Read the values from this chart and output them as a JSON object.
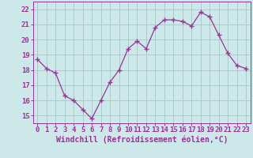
{
  "x": [
    0,
    1,
    2,
    3,
    4,
    5,
    6,
    7,
    8,
    9,
    10,
    11,
    12,
    13,
    14,
    15,
    16,
    17,
    18,
    19,
    20,
    21,
    22,
    23
  ],
  "y": [
    18.7,
    18.1,
    17.8,
    16.3,
    16.0,
    15.4,
    14.8,
    16.0,
    17.2,
    18.0,
    19.4,
    19.9,
    19.4,
    20.8,
    21.3,
    21.3,
    21.2,
    20.9,
    21.8,
    21.5,
    20.3,
    19.1,
    18.3,
    18.1
  ],
  "line_color": "#993399",
  "marker": "+",
  "bg_color": "#cce8e8",
  "grid_color": "#aacccc",
  "xlabel": "Windchill (Refroidissement éolien,°C)",
  "xlim": [
    -0.5,
    23.5
  ],
  "ylim": [
    14.5,
    22.5
  ],
  "yticks": [
    15,
    16,
    17,
    18,
    19,
    20,
    21,
    22
  ],
  "xticks": [
    0,
    1,
    2,
    3,
    4,
    5,
    6,
    7,
    8,
    9,
    10,
    11,
    12,
    13,
    14,
    15,
    16,
    17,
    18,
    19,
    20,
    21,
    22,
    23
  ],
  "tick_color": "#993399",
  "xlabel_color": "#993399",
  "tick_fontsize": 6.5,
  "xlabel_fontsize": 7
}
